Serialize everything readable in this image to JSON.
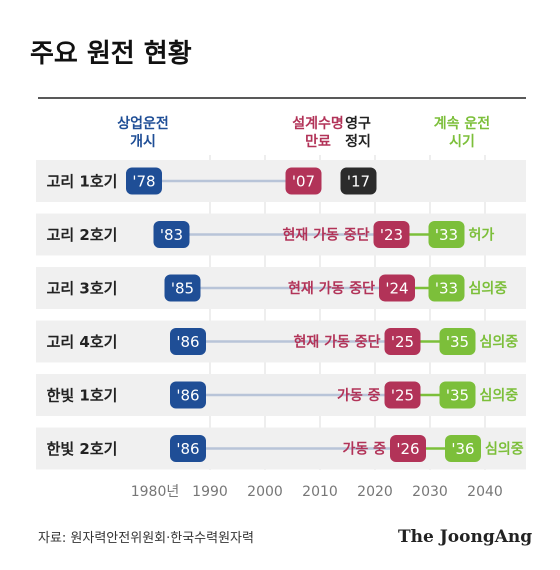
{
  "title": "주요 원전 현황",
  "headers": {
    "start": [
      "상업운전",
      "개시"
    ],
    "design_life": [
      "설계수명",
      "만료"
    ],
    "permanent_stop": [
      "영구",
      "정지"
    ],
    "continued": [
      "계속 운전",
      "시기"
    ]
  },
  "source": "자료: 원자력안전위원회·한국수력원자력",
  "brand": "The JoongAng",
  "colors": {
    "start": "#1f4e96",
    "design_life": "#b23358",
    "permanent_stop": "#2b2b2b",
    "continued": "#7cbf3a",
    "line": "#b8c4d8",
    "row_bg": "#f0f0f0",
    "status_text": "#b23358"
  },
  "chart_data": {
    "type": "timeline",
    "title": "주요 원전 현황",
    "x_ticks": [
      "1980년",
      "1990",
      "2000",
      "2010",
      "2020",
      "2030",
      "2040"
    ],
    "xlim": [
      1980,
      2040
    ],
    "grid": true,
    "rows": [
      {
        "name": "고리 1호기",
        "start": 1978,
        "start_label": "'78",
        "design_end": 2007,
        "design_end_label": "'07",
        "stop": 2017,
        "stop_label": "'17",
        "status": "",
        "continued": null,
        "continued_label": "",
        "continued_status": ""
      },
      {
        "name": "고리 2호기",
        "start": 1983,
        "start_label": "'83",
        "design_end": 2023,
        "design_end_label": "'23",
        "stop": null,
        "stop_label": "",
        "status": "현재 가동 중단",
        "continued": 2033,
        "continued_label": "'33",
        "continued_status": "허가"
      },
      {
        "name": "고리 3호기",
        "start": 1985,
        "start_label": "'85",
        "design_end": 2024,
        "design_end_label": "'24",
        "stop": null,
        "stop_label": "",
        "status": "현재 가동 중단",
        "continued": 2033,
        "continued_label": "'33",
        "continued_status": "심의중"
      },
      {
        "name": "고리 4호기",
        "start": 1986,
        "start_label": "'86",
        "design_end": 2025,
        "design_end_label": "'25",
        "stop": null,
        "stop_label": "",
        "status": "현재 가동 중단",
        "continued": 2035,
        "continued_label": "'35",
        "continued_status": "심의중"
      },
      {
        "name": "한빛 1호기",
        "start": 1986,
        "start_label": "'86",
        "design_end": 2025,
        "design_end_label": "'25",
        "stop": null,
        "stop_label": "",
        "status": "가동 중",
        "continued": 2035,
        "continued_label": "'35",
        "continued_status": "심의중"
      },
      {
        "name": "한빛 2호기",
        "start": 1986,
        "start_label": "'86",
        "design_end": 2026,
        "design_end_label": "'26",
        "stop": null,
        "stop_label": "",
        "status": "가동 중",
        "continued": 2036,
        "continued_label": "'36",
        "continued_status": "심의중"
      }
    ]
  }
}
